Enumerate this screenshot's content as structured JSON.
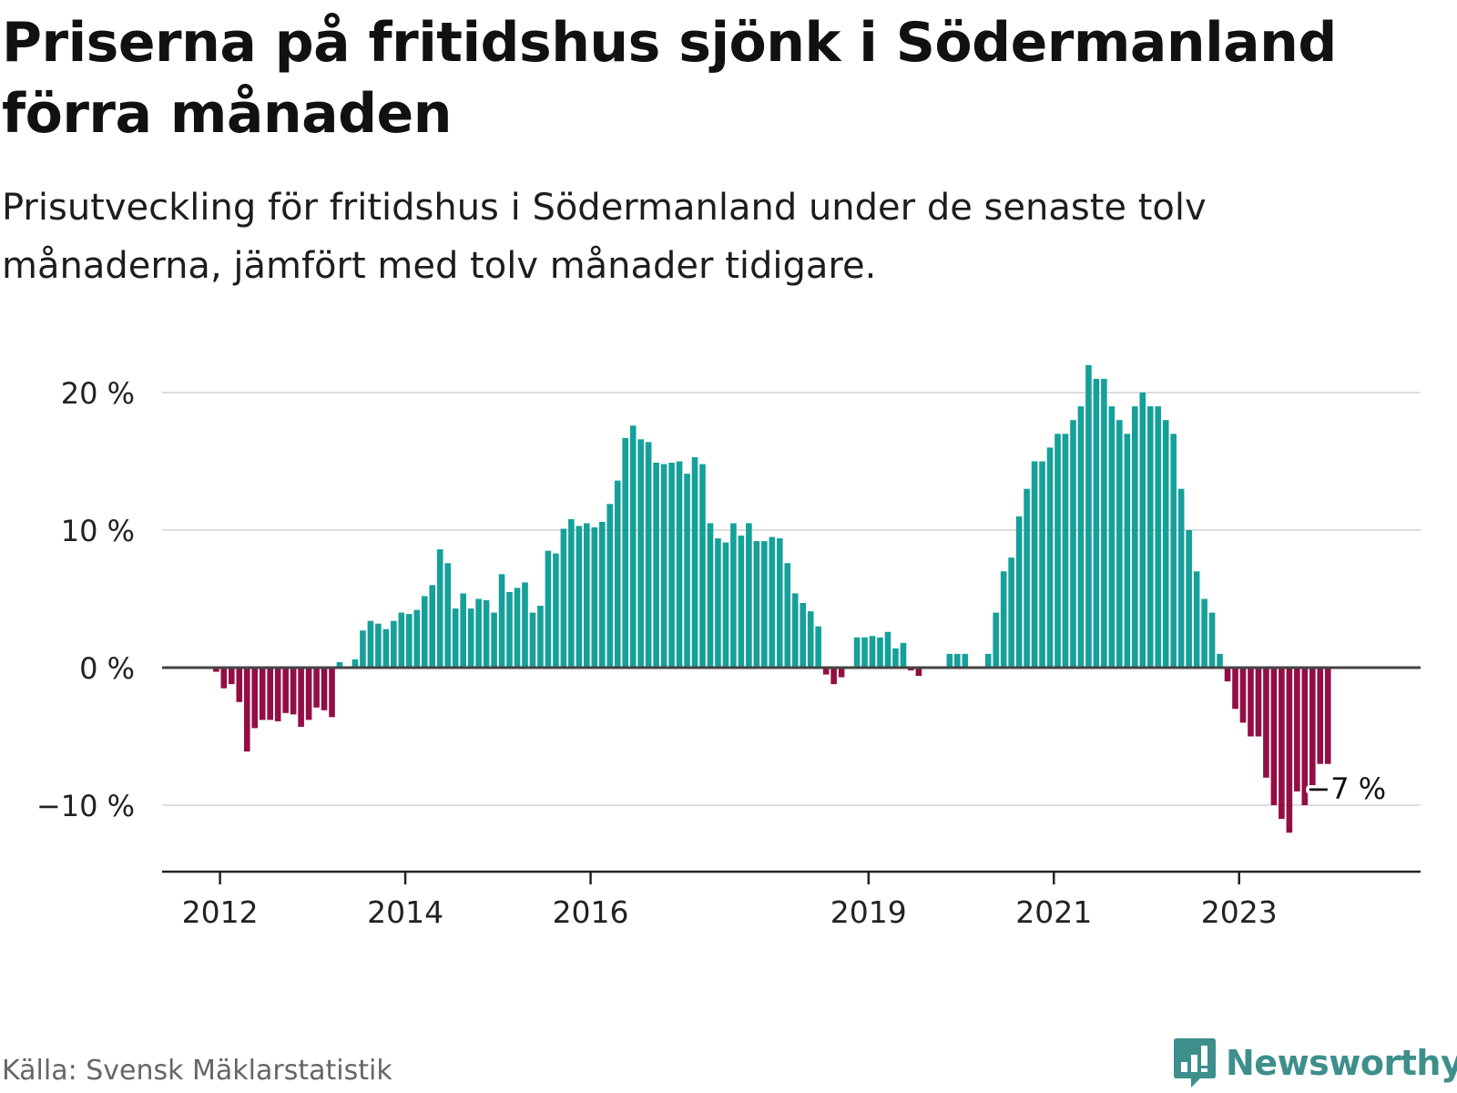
{
  "title": "Priserna på fritidshus sjönk i Södermanland förra månaden",
  "subtitle": "Prisutveckling för fritidshus i Södermanland under de senaste tolv månaderna, jämfört med tolv månader tidigare.",
  "source": "Källa: Svensk Mäklarstatistik",
  "brand": "Newsworthy",
  "colors": {
    "positive": "#16a09a",
    "negative": "#930e44",
    "gridline": "#dddddd",
    "zero_line": "#444444",
    "axis": "#222222",
    "text": "#222222",
    "brand": "#3d8f8c"
  },
  "chart_data": {
    "type": "bar",
    "ylim": [
      -14,
      22
    ],
    "y_ticks": [
      -10,
      0,
      10,
      20
    ],
    "y_tick_labels": [
      "−10 %",
      "0 %",
      "10 %",
      "20 %"
    ],
    "x_range": [
      "2011-05",
      "2024-12"
    ],
    "x_ticks": [
      "2012-01",
      "2014-01",
      "2016-01",
      "2019-01",
      "2021-01",
      "2023-01"
    ],
    "x_tick_labels": [
      "2012",
      "2014",
      "2016",
      "2019",
      "2021",
      "2023"
    ],
    "grid": true,
    "annotation": {
      "date": "2023-12",
      "value": -7,
      "label": "−7 %"
    },
    "x": [
      "2011-12",
      "2012-01",
      "2012-02",
      "2012-03",
      "2012-04",
      "2012-05",
      "2012-06",
      "2012-07",
      "2012-08",
      "2012-09",
      "2012-10",
      "2012-11",
      "2012-12",
      "2013-01",
      "2013-02",
      "2013-03",
      "2013-04",
      "2013-05",
      "2013-06",
      "2013-07",
      "2013-08",
      "2013-09",
      "2013-10",
      "2013-11",
      "2013-12",
      "2014-01",
      "2014-02",
      "2014-03",
      "2014-04",
      "2014-05",
      "2014-06",
      "2014-07",
      "2014-08",
      "2014-09",
      "2014-10",
      "2014-11",
      "2014-12",
      "2015-01",
      "2015-02",
      "2015-03",
      "2015-04",
      "2015-05",
      "2015-06",
      "2015-07",
      "2015-08",
      "2015-09",
      "2015-10",
      "2015-11",
      "2015-12",
      "2016-01",
      "2016-02",
      "2016-03",
      "2016-04",
      "2016-05",
      "2016-06",
      "2016-07",
      "2016-08",
      "2016-09",
      "2016-10",
      "2016-11",
      "2016-12",
      "2017-01",
      "2017-02",
      "2017-03",
      "2017-04",
      "2017-05",
      "2017-06",
      "2017-07",
      "2017-08",
      "2017-09",
      "2017-10",
      "2017-11",
      "2017-12",
      "2018-01",
      "2018-02",
      "2018-03",
      "2018-04",
      "2018-05",
      "2018-06",
      "2018-07",
      "2018-08",
      "2018-09",
      "2018-10",
      "2018-11",
      "2018-12",
      "2019-01",
      "2019-02",
      "2019-03",
      "2019-04",
      "2019-05",
      "2019-06",
      "2019-07",
      "2019-08",
      "2019-09",
      "2019-10",
      "2019-11",
      "2019-12",
      "2020-01",
      "2020-02",
      "2020-03",
      "2020-04",
      "2020-05",
      "2020-06",
      "2020-07",
      "2020-08",
      "2020-09",
      "2020-10",
      "2020-11",
      "2020-12",
      "2021-01",
      "2021-02",
      "2021-03",
      "2021-04",
      "2021-05",
      "2021-06",
      "2021-07",
      "2021-08",
      "2021-09",
      "2021-10",
      "2021-11",
      "2021-12",
      "2022-01",
      "2022-02",
      "2022-03",
      "2022-04",
      "2022-05",
      "2022-06",
      "2022-07",
      "2022-08",
      "2022-09",
      "2022-10",
      "2022-11",
      "2022-12",
      "2023-01",
      "2023-02",
      "2023-03",
      "2023-04",
      "2023-05",
      "2023-06",
      "2023-07",
      "2023-08",
      "2023-09",
      "2023-10",
      "2023-11",
      "2023-12"
    ],
    "values": [
      -0.3,
      -1.5,
      -1.2,
      -2.5,
      -6.1,
      -4.4,
      -3.8,
      -3.8,
      -3.9,
      -3.3,
      -3.4,
      -4.3,
      -3.8,
      -2.9,
      -3.1,
      -3.6,
      0.4,
      0,
      0.6,
      2.7,
      3.4,
      3.2,
      2.8,
      3.4,
      4.0,
      3.9,
      4.2,
      5.2,
      6.0,
      8.6,
      7.6,
      4.3,
      5.4,
      4.3,
      5.0,
      4.9,
      4.0,
      6.8,
      5.5,
      5.8,
      6.2,
      4.0,
      4.5,
      8.5,
      8.3,
      10.1,
      10.8,
      10.3,
      10.5,
      10.2,
      10.6,
      11.9,
      13.6,
      16.7,
      17.6,
      16.6,
      16.4,
      14.9,
      14.8,
      14.9,
      15.0,
      14.1,
      15.3,
      14.8,
      10.5,
      9.4,
      9.1,
      10.5,
      9.6,
      10.5,
      9.2,
      9.2,
      9.5,
      9.4,
      7.6,
      5.4,
      4.7,
      4.1,
      3.0,
      -0.5,
      -1.2,
      -0.7,
      0,
      2.2,
      2.2,
      2.3,
      2.2,
      2.6,
      1.4,
      1.8,
      -0.2,
      -0.6,
      0,
      0,
      0,
      1.0,
      1.0,
      1.0,
      0,
      0,
      1.0,
      4.0,
      7.0,
      8.0,
      11.0,
      13.0,
      15.0,
      15.0,
      16.0,
      17.0,
      17.0,
      18.0,
      19.0,
      22.0,
      21.0,
      21.0,
      19.0,
      18.0,
      17.0,
      19.0,
      20.0,
      19.0,
      19.0,
      18.0,
      17.0,
      13.0,
      10.0,
      7.0,
      5.0,
      4.0,
      1.0,
      -1.0,
      -3.0,
      -4.0,
      -5.0,
      -5.0,
      -8.0,
      -10.0,
      -11.0,
      -12.0,
      -9.0,
      -10.0,
      -9.0,
      -7.0,
      -7.0
    ]
  }
}
